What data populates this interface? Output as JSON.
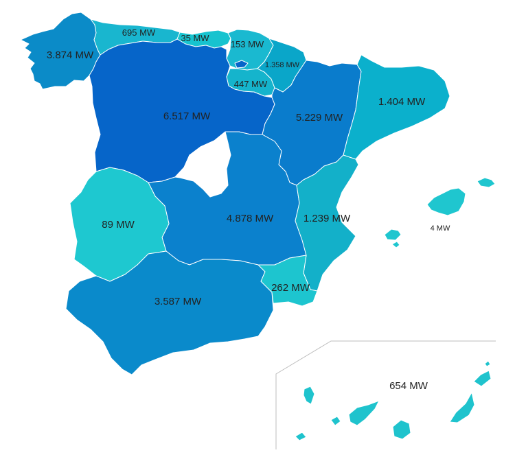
{
  "regions": {
    "galicia": {
      "label": "3.874 MW",
      "color": "#0b8bc8"
    },
    "asturias": {
      "label": "695 MW",
      "color": "#19b6cf"
    },
    "cantabria": {
      "label": "35 MW",
      "color": "#17c3cf"
    },
    "pais_vasco": {
      "label": "153 MW",
      "color": "#1ab9d0"
    },
    "navarra": {
      "label": "1.358 MW",
      "color": "#0aa6c9"
    },
    "la_rioja": {
      "label": "447 MW",
      "color": "#15b4cc"
    },
    "castilla_y_leon": {
      "label": "6.517 MW",
      "color": "#0665c9"
    },
    "aragon": {
      "label": "5.229 MW",
      "color": "#0a7ccc"
    },
    "cataluna": {
      "label": "1.404 MW",
      "color": "#0bb0cc"
    },
    "madrid": {
      "color": "#ffffff"
    },
    "extremadura": {
      "label": "89 MW",
      "color": "#1ec8d0"
    },
    "castilla_la_mancha": {
      "label": "4.878 MW",
      "color": "#0b81cd"
    },
    "valencia": {
      "label": "1.239 MW",
      "color": "#13b0c9"
    },
    "murcia": {
      "label": "262 MW",
      "color": "#1dc5cf"
    },
    "andalucia": {
      "label": "3.587 MW",
      "color": "#0a8acb"
    },
    "baleares": {
      "label": "4 MW",
      "color": "#1fc6cf"
    },
    "canarias": {
      "label": "654 MW",
      "color": "#1fc3cd"
    }
  },
  "inset": {
    "line_color": "#bdbdbd"
  }
}
